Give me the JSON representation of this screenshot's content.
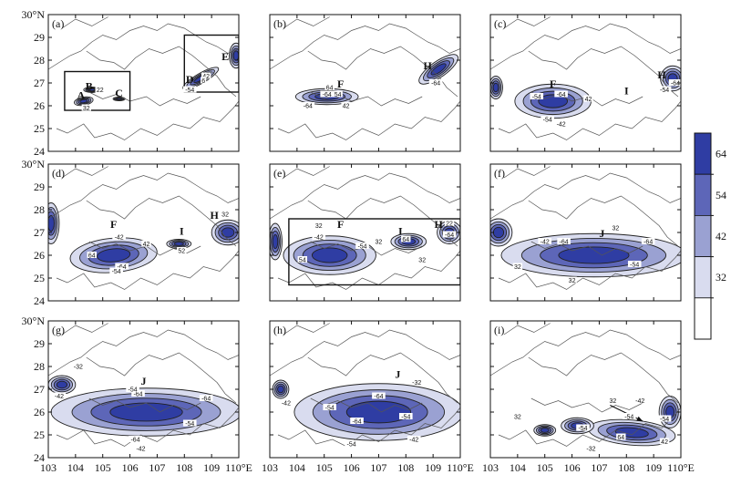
{
  "chart_data": {
    "type": "heatmap",
    "colors": {
      "band_32_42": "#d9dcef",
      "band_42_54": "#9aa1d2",
      "band_54_64": "#5d66b8",
      "band_64_plus": "#2f3da3",
      "contour": "#222222",
      "border": "#555555"
    },
    "x_ticks": [
      "103",
      "104",
      "105",
      "106",
      "107",
      "108",
      "109",
      "110°E"
    ],
    "y_ticks": [
      "24",
      "25",
      "26",
      "27",
      "28",
      "29",
      "30°N"
    ],
    "xlim": [
      103,
      110
    ],
    "ylim": [
      24,
      30
    ],
    "colorbar": {
      "levels": [
        "32",
        "42",
        "54",
        "64"
      ],
      "bands": [
        "32-42",
        "42-54",
        "54-64",
        ">64"
      ]
    },
    "panels": [
      {
        "label": "(a)",
        "features": [
          {
            "name": "A",
            "lon": 104.2,
            "lat": 26.3
          },
          {
            "name": "B",
            "lon": 104.5,
            "lat": 26.7
          },
          {
            "name": "C",
            "lon": 105.6,
            "lat": 26.4
          },
          {
            "name": "D",
            "lon": 108.2,
            "lat": 27.0
          },
          {
            "name": "E",
            "lon": 109.5,
            "lat": 28.0
          }
        ],
        "contour_labels": [
          {
            "text": "22",
            "lon": 104.9,
            "lat": 26.7
          },
          {
            "text": "32",
            "lon": 104.4,
            "lat": 25.9
          },
          {
            "text": "42",
            "lon": 108.8,
            "lat": 27.3
          },
          {
            "text": "-54",
            "lon": 108.2,
            "lat": 26.7
          },
          {
            "text": "6",
            "lon": 108.7,
            "lat": 27.1
          }
        ],
        "boxes": [
          {
            "lon": [
              103.6,
              106.0
            ],
            "lat": [
              25.8,
              27.5
            ]
          },
          {
            "lon": [
              108.0,
              110.0
            ],
            "lat": [
              26.6,
              29.1
            ]
          }
        ]
      },
      {
        "label": "(b)",
        "features": [
          {
            "name": "F",
            "lon": 105.6,
            "lat": 26.8
          },
          {
            "name": "H",
            "lon": 108.8,
            "lat": 27.6
          }
        ],
        "contour_labels": [
          {
            "text": "64",
            "lon": 105.2,
            "lat": 26.8
          },
          {
            "text": "-64",
            "lon": 105.1,
            "lat": 26.5
          },
          {
            "text": "54",
            "lon": 105.5,
            "lat": 26.5
          },
          {
            "text": "-64",
            "lon": 104.4,
            "lat": 26.0
          },
          {
            "text": "42",
            "lon": 105.8,
            "lat": 26.0
          },
          {
            "text": "-64",
            "lon": 109.1,
            "lat": 27.0
          }
        ]
      },
      {
        "label": "(c)",
        "features": [
          {
            "name": "F",
            "lon": 105.3,
            "lat": 26.8
          },
          {
            "name": "I",
            "lon": 108.0,
            "lat": 26.5
          },
          {
            "name": "H",
            "lon": 109.3,
            "lat": 27.2
          }
        ],
        "contour_labels": [
          {
            "text": "-54",
            "lon": 104.7,
            "lat": 26.4
          },
          {
            "text": "-64",
            "lon": 105.6,
            "lat": 26.5
          },
          {
            "text": "-54",
            "lon": 105.1,
            "lat": 25.4
          },
          {
            "text": "-42",
            "lon": 105.6,
            "lat": 25.2
          },
          {
            "text": "42",
            "lon": 106.6,
            "lat": 26.3
          },
          {
            "text": "-54",
            "lon": 109.4,
            "lat": 26.7
          },
          {
            "text": "-64",
            "lon": 109.8,
            "lat": 27.0
          }
        ]
      },
      {
        "label": "(d)",
        "features": [
          {
            "name": "F",
            "lon": 105.4,
            "lat": 27.2
          },
          {
            "name": "I",
            "lon": 107.9,
            "lat": 26.9
          },
          {
            "name": "H",
            "lon": 109.1,
            "lat": 27.6
          }
        ],
        "contour_labels": [
          {
            "text": "-42",
            "lon": 105.6,
            "lat": 26.8
          },
          {
            "text": "-64",
            "lon": 105.7,
            "lat": 25.5
          },
          {
            "text": "-54",
            "lon": 105.5,
            "lat": 25.3
          },
          {
            "text": "64",
            "lon": 104.6,
            "lat": 26.0
          },
          {
            "text": "42",
            "lon": 106.6,
            "lat": 26.5
          },
          {
            "text": "52",
            "lon": 107.9,
            "lat": 26.2
          },
          {
            "text": "32",
            "lon": 109.5,
            "lat": 27.8
          }
        ]
      },
      {
        "label": "(e)",
        "features": [
          {
            "name": "F",
            "lon": 105.6,
            "lat": 27.2
          },
          {
            "name": "I",
            "lon": 107.8,
            "lat": 26.9
          },
          {
            "name": "H",
            "lon": 109.2,
            "lat": 27.2
          }
        ],
        "contour_labels": [
          {
            "text": "32",
            "lon": 104.8,
            "lat": 27.3
          },
          {
            "text": "-42",
            "lon": 104.8,
            "lat": 26.8
          },
          {
            "text": "-54",
            "lon": 106.4,
            "lat": 26.4
          },
          {
            "text": "54",
            "lon": 104.2,
            "lat": 25.8
          },
          {
            "text": "32",
            "lon": 107.0,
            "lat": 26.6
          },
          {
            "text": "64",
            "lon": 108.0,
            "lat": 26.7
          },
          {
            "text": "-64",
            "lon": 109.6,
            "lat": 26.9
          },
          {
            "text": "22",
            "lon": 109.6,
            "lat": 27.4
          },
          {
            "text": "32",
            "lon": 108.6,
            "lat": 25.8
          }
        ],
        "boxes": [
          {
            "lon": [
              103.7,
              110.0
            ],
            "lat": [
              24.7,
              27.6
            ]
          }
        ]
      },
      {
        "label": "(f)",
        "features": [
          {
            "name": "J",
            "lon": 107.1,
            "lat": 26.8
          }
        ],
        "contour_labels": [
          {
            "text": "-42",
            "lon": 105.0,
            "lat": 26.6
          },
          {
            "text": "-64",
            "lon": 105.7,
            "lat": 26.6
          },
          {
            "text": "32",
            "lon": 107.6,
            "lat": 27.2
          },
          {
            "text": "-64",
            "lon": 108.8,
            "lat": 26.6
          },
          {
            "text": "-54",
            "lon": 108.3,
            "lat": 25.6
          },
          {
            "text": "32",
            "lon": 104.0,
            "lat": 25.5
          },
          {
            "text": "32",
            "lon": 106.0,
            "lat": 24.9
          }
        ]
      },
      {
        "label": "(g)",
        "features": [
          {
            "name": "J",
            "lon": 106.5,
            "lat": 27.2
          }
        ],
        "contour_labels": [
          {
            "text": "-32",
            "lon": 104.1,
            "lat": 28.0
          },
          {
            "text": "-64",
            "lon": 106.3,
            "lat": 26.8
          },
          {
            "text": "-54",
            "lon": 106.1,
            "lat": 27.0
          },
          {
            "text": "-42",
            "lon": 103.4,
            "lat": 26.7
          },
          {
            "text": "-64",
            "lon": 108.8,
            "lat": 26.6
          },
          {
            "text": "-64",
            "lon": 106.2,
            "lat": 24.8
          },
          {
            "text": "-54",
            "lon": 108.2,
            "lat": 25.5
          },
          {
            "text": "-42",
            "lon": 106.4,
            "lat": 24.4
          }
        ]
      },
      {
        "label": "(h)",
        "features": [
          {
            "name": "J",
            "lon": 107.7,
            "lat": 27.5
          }
        ],
        "contour_labels": [
          {
            "text": "-32",
            "lon": 108.4,
            "lat": 27.3
          },
          {
            "text": "-64",
            "lon": 107.0,
            "lat": 26.7
          },
          {
            "text": "-54",
            "lon": 105.2,
            "lat": 26.2
          },
          {
            "text": "-64",
            "lon": 106.2,
            "lat": 25.6
          },
          {
            "text": "-54",
            "lon": 108.0,
            "lat": 25.8
          },
          {
            "text": "-54",
            "lon": 106.0,
            "lat": 24.6
          },
          {
            "text": "-42",
            "lon": 108.3,
            "lat": 24.8
          },
          {
            "text": "-42",
            "lon": 103.6,
            "lat": 26.4
          }
        ]
      },
      {
        "label": "(i)",
        "features": [],
        "contour_labels": [
          {
            "text": "32",
            "lon": 107.5,
            "lat": 26.5
          },
          {
            "text": "-42",
            "lon": 108.5,
            "lat": 26.5
          },
          {
            "text": "-54",
            "lon": 108.1,
            "lat": 25.8
          },
          {
            "text": "-54",
            "lon": 109.4,
            "lat": 25.7
          },
          {
            "text": "-54",
            "lon": 106.4,
            "lat": 25.3
          },
          {
            "text": "32",
            "lon": 104.0,
            "lat": 25.8
          },
          {
            "text": "64",
            "lon": 107.8,
            "lat": 24.9
          },
          {
            "text": "42",
            "lon": 109.4,
            "lat": 24.7
          },
          {
            "text": "-32",
            "lon": 106.7,
            "lat": 24.4
          }
        ],
        "arrow": {
          "from_lon": 107.4,
          "from_lat": 26.3,
          "to_lon": 108.6,
          "to_lat": 25.6
        }
      }
    ]
  }
}
